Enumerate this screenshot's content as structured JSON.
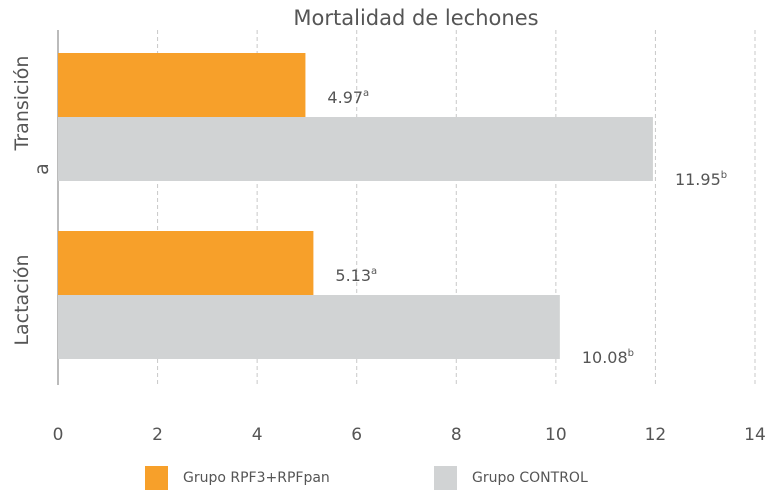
{
  "chart_data": {
    "type": "bar",
    "orientation": "horizontal",
    "title": "Mortalidad de lechones",
    "categories": [
      [
        "Transición",
        "a"
      ],
      [
        "Lactación"
      ]
    ],
    "series": [
      {
        "name": "Grupo RPF3+RPFpan",
        "color": "#f7a02a",
        "values": [
          4.97,
          5.13
        ],
        "labels": [
          "4.97",
          "5.13"
        ],
        "superscripts": [
          "a",
          "a"
        ]
      },
      {
        "name": "Grupo CONTROL",
        "color": "#d1d3d4",
        "values": [
          11.95,
          10.08
        ],
        "labels": [
          "11.95",
          "10.08"
        ],
        "superscripts": [
          "b",
          "b"
        ]
      }
    ],
    "xlim": [
      0,
      14
    ],
    "xticks": [
      "0",
      "2",
      "4",
      "6",
      "8",
      "10",
      "12",
      "14"
    ],
    "grid": "vertical dashed",
    "legend": "bottom"
  }
}
